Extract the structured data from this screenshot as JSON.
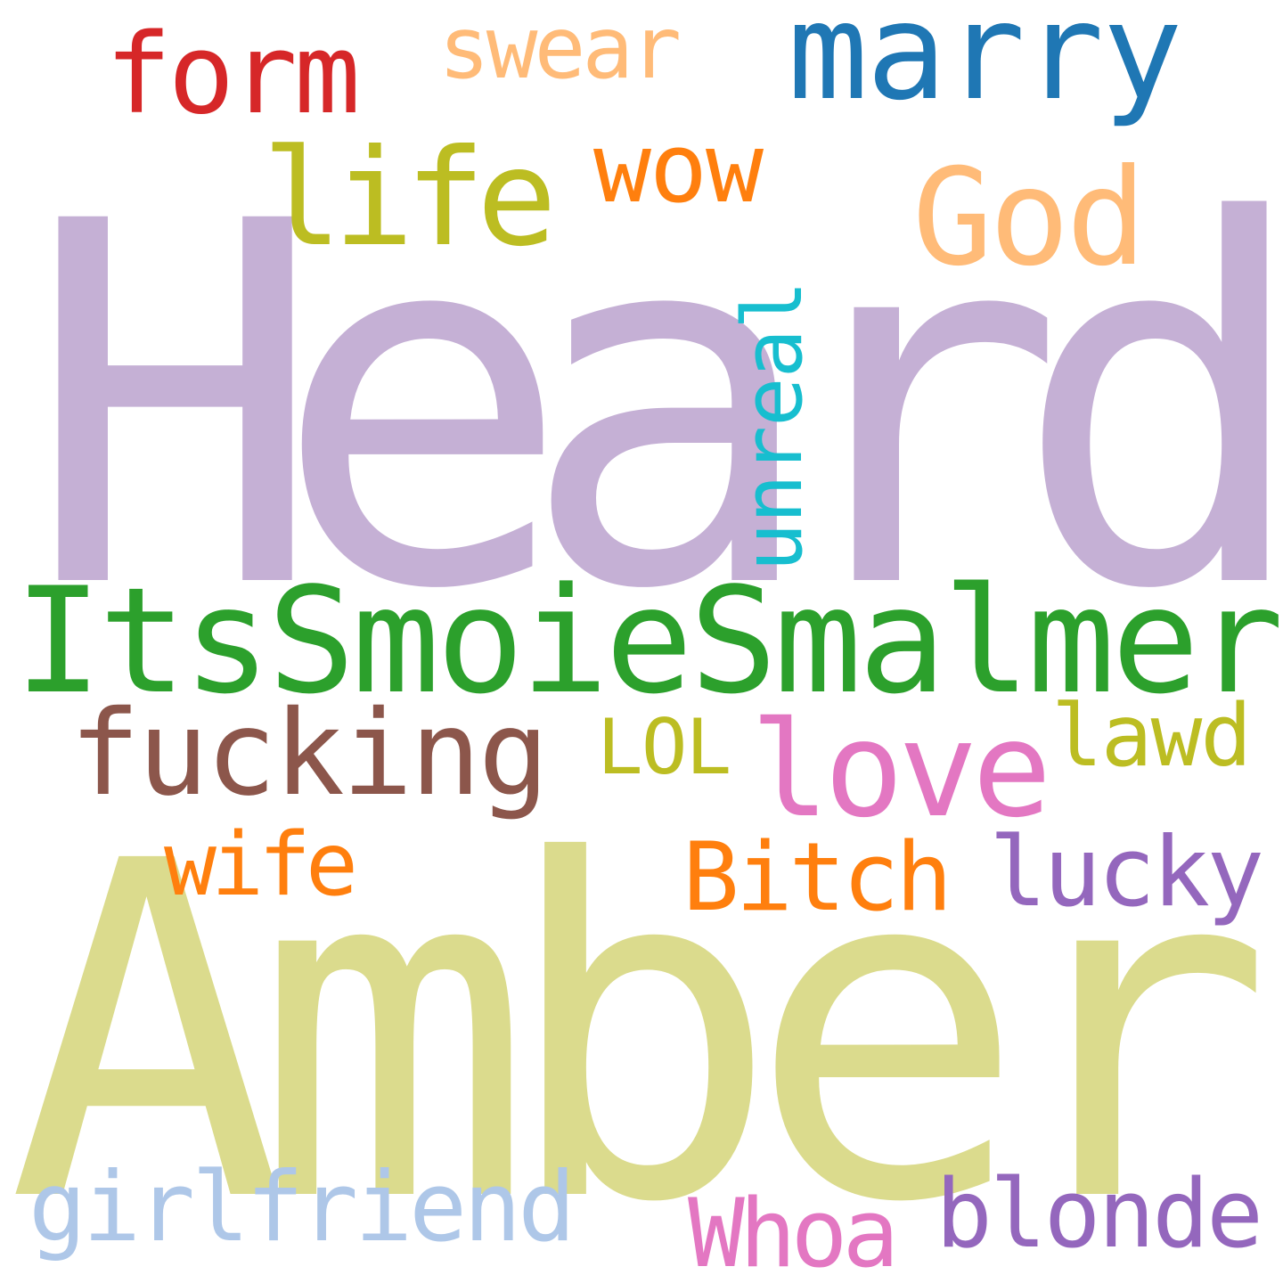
{
  "words": [
    {
      "id": "heard",
      "text": "Heard",
      "color": "#c5b0d5"
    },
    {
      "id": "amber",
      "text": "Amber",
      "color": "#dbdb8d"
    },
    {
      "id": "itssmoiesmalmer",
      "text": "ItsSmoieSmalmer",
      "color": "#2ca02c"
    },
    {
      "id": "marry",
      "text": "marry",
      "color": "#1f77b4"
    },
    {
      "id": "form",
      "text": "form",
      "color": "#d62728"
    },
    {
      "id": "swear",
      "text": "swear",
      "color": "#ffbb78"
    },
    {
      "id": "god",
      "text": "God",
      "color": "#ffbb78"
    },
    {
      "id": "life",
      "text": "life",
      "color": "#bcbd22"
    },
    {
      "id": "wow",
      "text": "wow",
      "color": "#ff7f0e"
    },
    {
      "id": "unreal",
      "text": "unreal",
      "color": "#17becf"
    },
    {
      "id": "fucking",
      "text": "fucking",
      "color": "#8c564b"
    },
    {
      "id": "lol",
      "text": "LOL",
      "color": "#bcbd22"
    },
    {
      "id": "love",
      "text": "love",
      "color": "#e377c2"
    },
    {
      "id": "lawd",
      "text": "lawd",
      "color": "#bcbd22"
    },
    {
      "id": "wife",
      "text": "wife",
      "color": "#ff7f0e"
    },
    {
      "id": "bitch",
      "text": "Bitch",
      "color": "#ff7f0e"
    },
    {
      "id": "lucky",
      "text": "lucky",
      "color": "#9467bd"
    },
    {
      "id": "girlfriend",
      "text": "girlfriend",
      "color": "#aec7e8"
    },
    {
      "id": "whoa",
      "text": "Whoa",
      "color": "#e377c2"
    },
    {
      "id": "blonde",
      "text": "blonde",
      "color": "#9467bd"
    }
  ]
}
